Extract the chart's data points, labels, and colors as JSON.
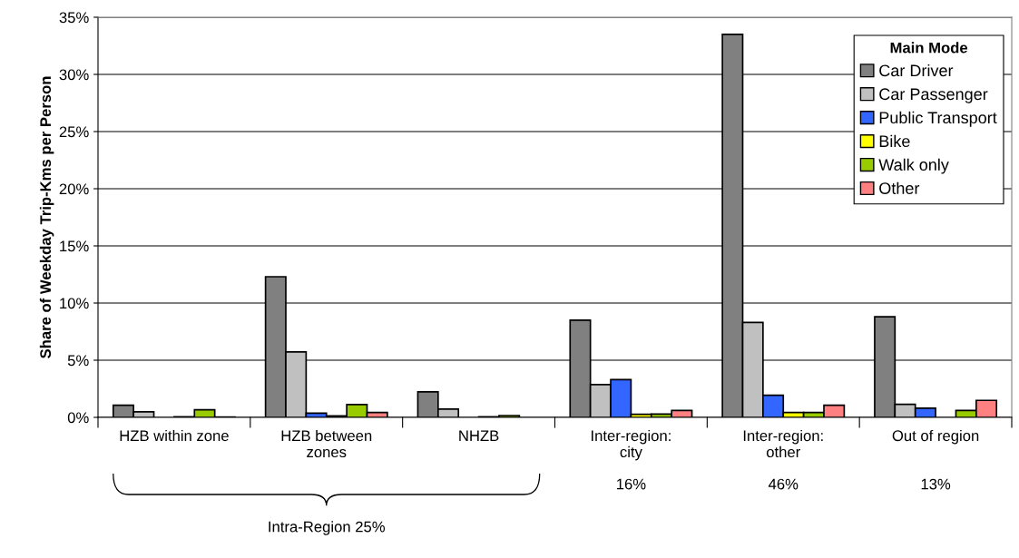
{
  "chart_data": {
    "type": "bar",
    "ylabel": "Share of Weekday Trip-Kms per Person",
    "legend_title": "Main Mode",
    "categories": [
      "HZB within zone",
      "HZB between\nzones",
      "NHZB",
      "Inter-region:\ncity",
      "Inter-region:\nother",
      "Out of region"
    ],
    "series": [
      {
        "name": "Car Driver",
        "color": "#808080",
        "values": [
          1.06,
          12.3,
          2.23,
          8.5,
          33.5,
          8.8
        ]
      },
      {
        "name": "Car Passenger",
        "color": "#c0c0c0",
        "values": [
          0.48,
          5.72,
          0.72,
          2.87,
          8.3,
          1.14
        ]
      },
      {
        "name": "Public Transport",
        "color": "#3366ff",
        "values": [
          null,
          0.37,
          null,
          3.3,
          1.94,
          0.8
        ]
      },
      {
        "name": "Bike",
        "color": "#ffff00",
        "values": [
          0.05,
          0.13,
          0.05,
          0.27,
          0.43,
          null
        ]
      },
      {
        "name": "Walk only",
        "color": "#99cc00",
        "values": [
          0.66,
          1.12,
          0.16,
          0.29,
          0.43,
          0.61
        ]
      },
      {
        "name": "Other",
        "color": "#ff8080",
        "values": [
          0.03,
          0.42,
          null,
          0.61,
          1.06,
          1.49
        ]
      }
    ],
    "ylim": [
      0,
      35
    ],
    "yticks": [
      {
        "value": 0,
        "label": "0%"
      },
      {
        "value": 5,
        "label": "5%"
      },
      {
        "value": 10,
        "label": "10%"
      },
      {
        "value": 15,
        "label": "15%"
      },
      {
        "value": 20,
        "label": "20%"
      },
      {
        "value": 25,
        "label": "25%"
      },
      {
        "value": 30,
        "label": "30%"
      },
      {
        "value": 35,
        "label": "35%"
      }
    ],
    "grid": "y",
    "legend": "top right",
    "annotations": [
      "Intra-Region 25%",
      "16%",
      "46%",
      "13%"
    ]
  }
}
